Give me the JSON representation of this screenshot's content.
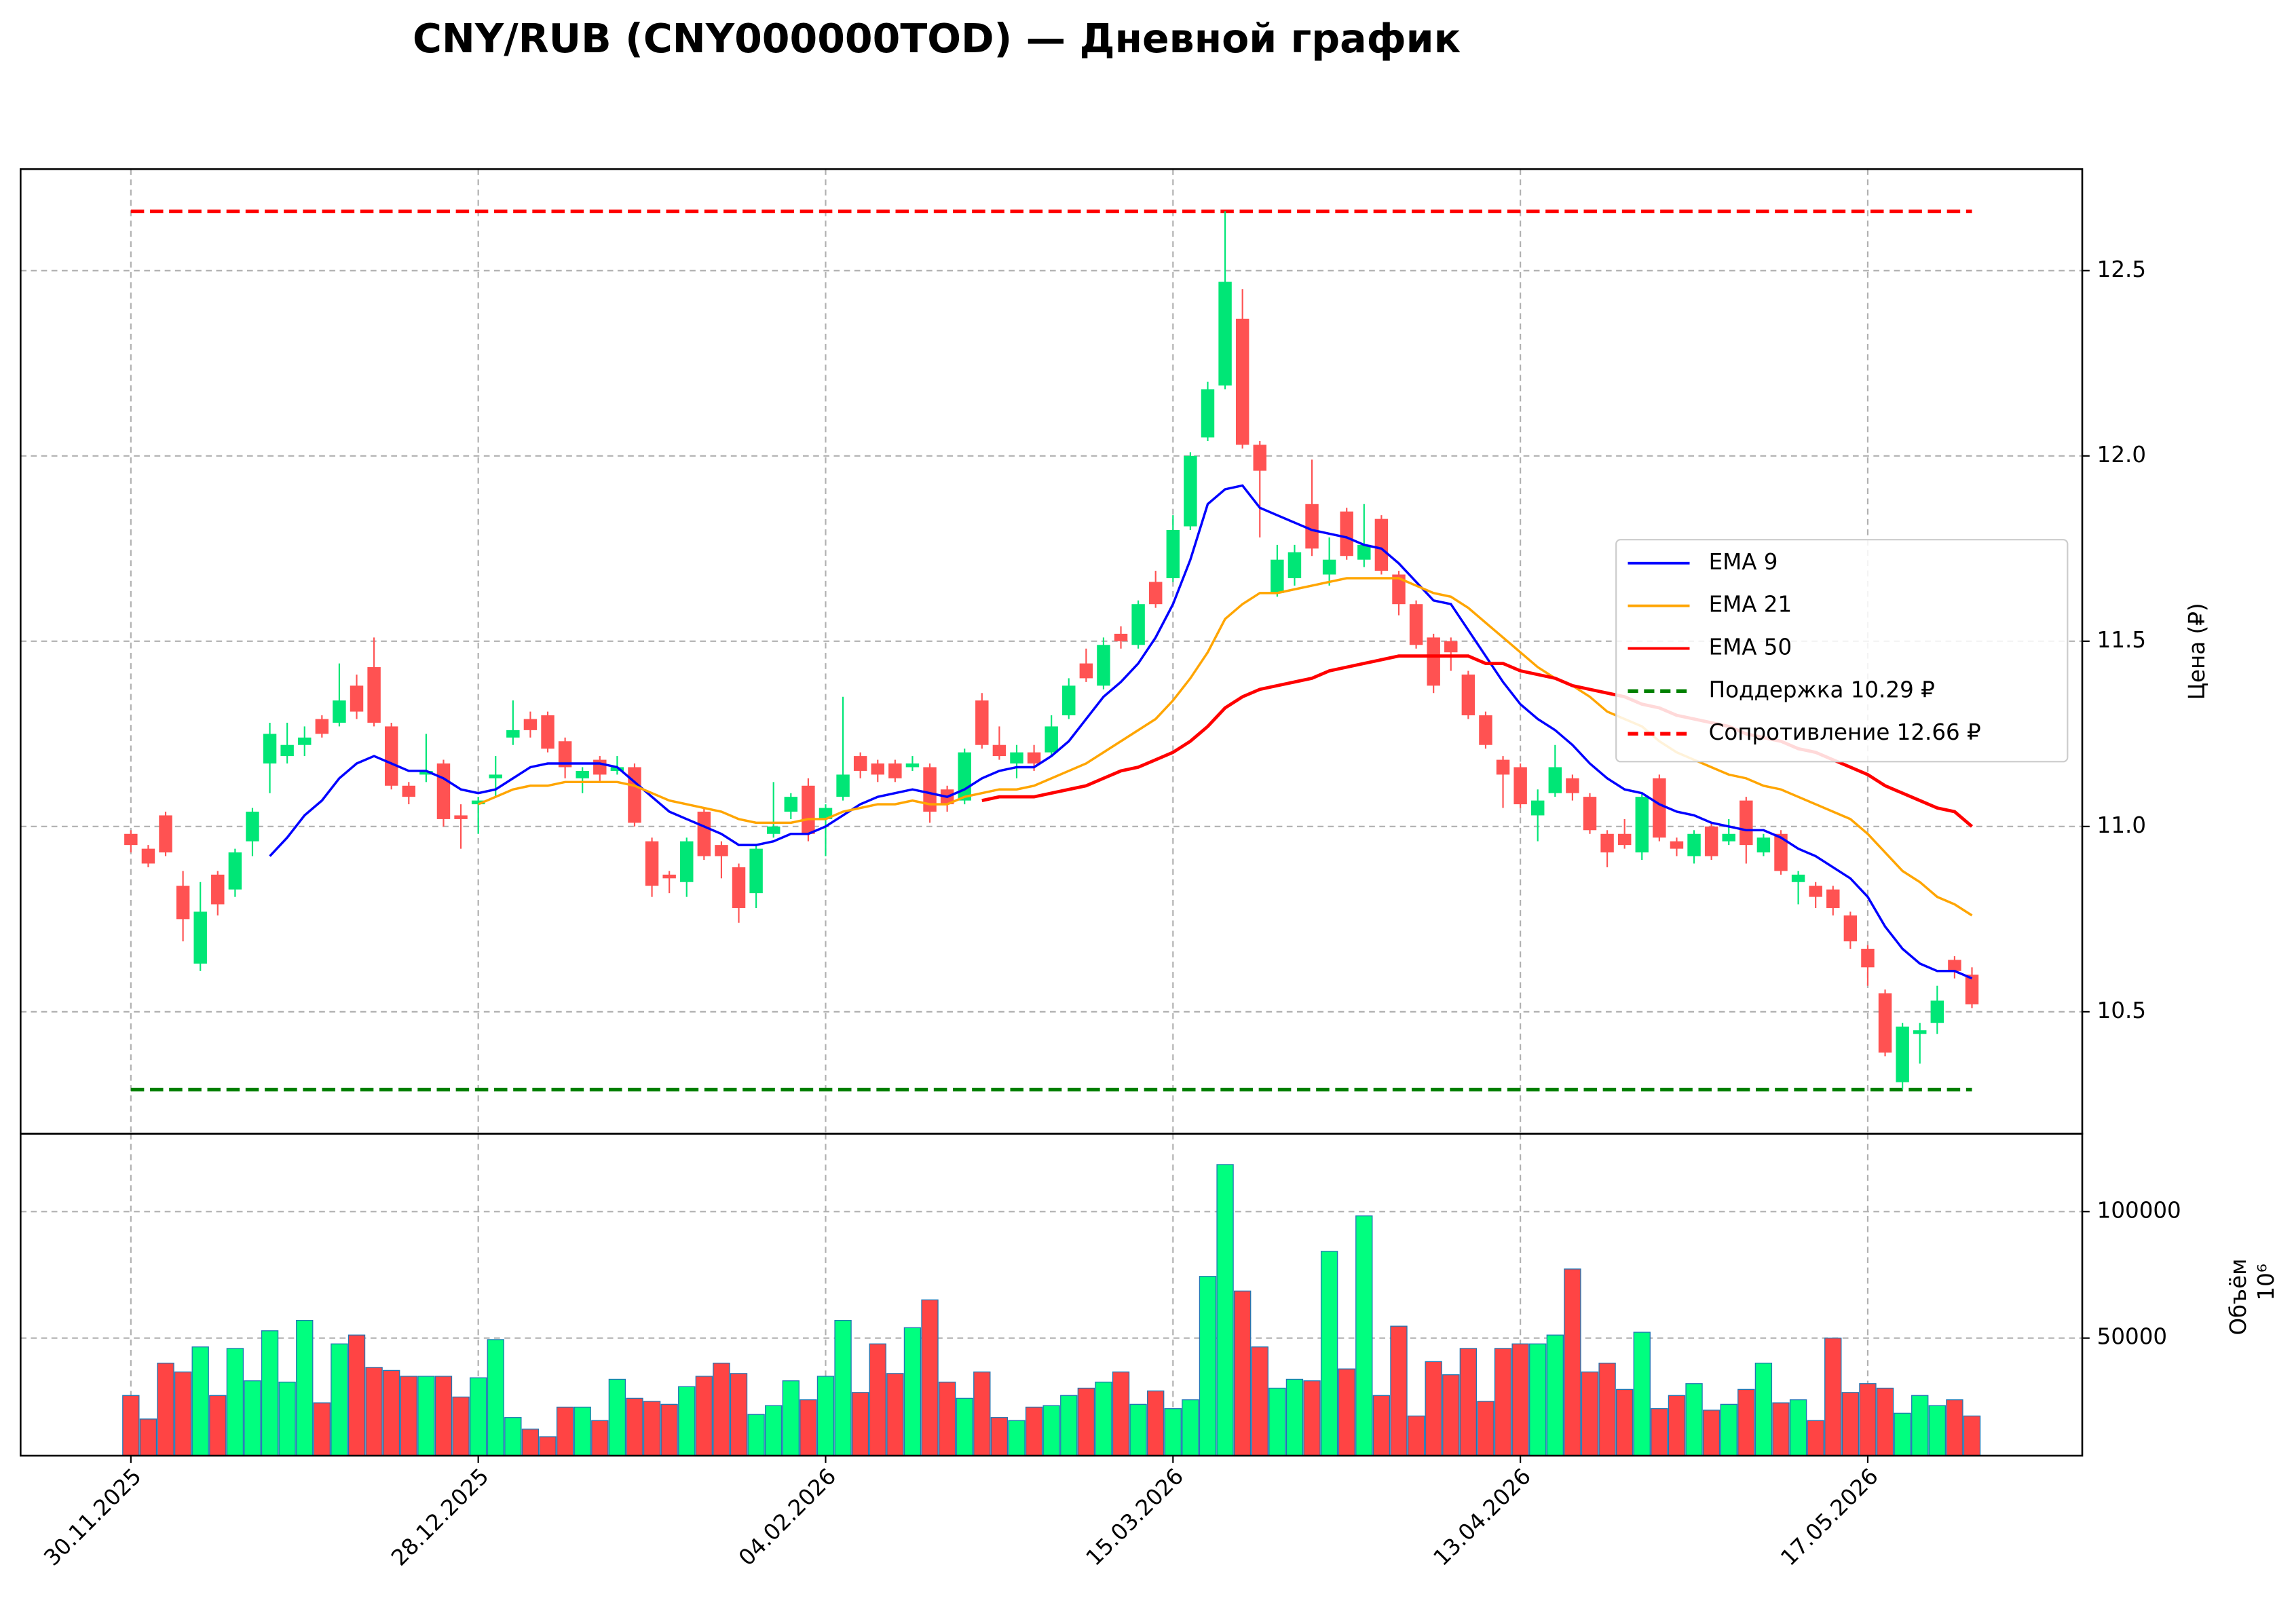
{
  "chart_data": [
    {
      "type": "candlestick",
      "title": "CNY/RUB (CNY000000TOD) — Дневной график",
      "ylabel": "Цена (₽)",
      "open": [
        10.98,
        10.94,
        11.03,
        10.84,
        10.63,
        10.87,
        10.83,
        10.96,
        11.17,
        11.19,
        11.22,
        11.29,
        11.28,
        11.38,
        11.43,
        11.27,
        11.11,
        11.14,
        11.17,
        11.03,
        11.06,
        11.13,
        11.24,
        11.29,
        11.3,
        11.23,
        11.13,
        11.18,
        11.15,
        11.16,
        10.96,
        10.87,
        10.85,
        11.04,
        10.95,
        10.89,
        10.82,
        10.98,
        11.04,
        11.11,
        11.02,
        11.08,
        11.19,
        11.17,
        11.17,
        11.16,
        11.16,
        11.1,
        11.07,
        11.34,
        11.22,
        11.17,
        11.2,
        11.2,
        11.3,
        11.44,
        11.38,
        11.52,
        11.49,
        11.66,
        11.67,
        11.81,
        12.05,
        12.19,
        12.37,
        12.03,
        11.63,
        11.67,
        11.87,
        11.68,
        11.85,
        11.72,
        11.83,
        11.68,
        11.6,
        11.51,
        11.5,
        11.41,
        11.3,
        11.18,
        11.16,
        11.03,
        11.09,
        11.13,
        11.08,
        10.98,
        10.98,
        10.93,
        11.13,
        10.96,
        10.92,
        11.0,
        10.96,
        11.07,
        10.93,
        10.98,
        10.85,
        10.84,
        10.83,
        10.76,
        10.67,
        10.55,
        10.31,
        10.44,
        10.47,
        10.64,
        10.6
      ],
      "high": [
        10.99,
        10.95,
        11.04,
        10.88,
        10.85,
        10.88,
        10.94,
        11.05,
        11.28,
        11.28,
        11.27,
        11.3,
        11.44,
        11.41,
        11.51,
        11.28,
        11.12,
        11.25,
        11.18,
        11.06,
        11.08,
        11.19,
        11.34,
        11.31,
        11.31,
        11.24,
        11.16,
        11.19,
        11.19,
        11.17,
        10.97,
        10.88,
        10.97,
        11.05,
        10.96,
        10.9,
        10.95,
        11.12,
        11.09,
        11.13,
        11.06,
        11.35,
        11.2,
        11.18,
        11.18,
        11.19,
        11.17,
        11.11,
        11.21,
        11.36,
        11.27,
        11.22,
        11.22,
        11.3,
        11.4,
        11.48,
        11.51,
        11.54,
        11.61,
        11.69,
        11.84,
        12.01,
        12.2,
        12.66,
        12.45,
        12.04,
        11.76,
        11.76,
        11.99,
        11.78,
        11.86,
        11.87,
        11.84,
        11.69,
        11.61,
        11.52,
        11.51,
        11.42,
        11.31,
        11.19,
        11.17,
        11.1,
        11.22,
        11.14,
        11.09,
        10.99,
        11.02,
        11.09,
        11.14,
        10.97,
        10.99,
        11.01,
        11.02,
        11.08,
        10.98,
        10.99,
        10.88,
        10.85,
        10.84,
        10.77,
        10.68,
        10.56,
        10.47,
        10.47,
        10.57,
        10.65,
        10.62
      ],
      "low": [
        10.93,
        10.89,
        10.92,
        10.69,
        10.61,
        10.76,
        10.81,
        10.92,
        11.09,
        11.17,
        11.19,
        11.24,
        11.27,
        11.29,
        11.27,
        11.1,
        11.06,
        11.12,
        11.0,
        10.94,
        10.98,
        11.08,
        11.22,
        11.24,
        11.2,
        11.13,
        11.09,
        11.12,
        11.14,
        11.0,
        10.81,
        10.82,
        10.81,
        10.91,
        10.86,
        10.74,
        10.78,
        10.97,
        11.02,
        10.96,
        10.92,
        11.07,
        11.13,
        11.12,
        11.12,
        11.15,
        11.01,
        11.04,
        11.06,
        11.21,
        11.18,
        11.13,
        11.15,
        11.19,
        11.29,
        11.39,
        11.37,
        11.48,
        11.48,
        11.59,
        11.66,
        11.8,
        12.04,
        12.18,
        12.02,
        11.78,
        11.62,
        11.65,
        11.73,
        11.65,
        11.72,
        11.7,
        11.68,
        11.57,
        11.48,
        11.36,
        11.42,
        11.29,
        11.21,
        11.05,
        11.05,
        10.96,
        11.08,
        11.07,
        10.98,
        10.89,
        10.94,
        10.91,
        10.96,
        10.92,
        10.9,
        10.91,
        10.95,
        10.9,
        10.92,
        10.87,
        10.79,
        10.78,
        10.76,
        10.67,
        10.57,
        10.38,
        10.29,
        10.36,
        10.44,
        10.59,
        10.51
      ],
      "close": [
        10.95,
        10.9,
        10.93,
        10.75,
        10.77,
        10.79,
        10.93,
        11.04,
        11.25,
        11.22,
        11.24,
        11.25,
        11.34,
        11.31,
        11.28,
        11.11,
        11.08,
        11.15,
        11.02,
        11.02,
        11.07,
        11.14,
        11.26,
        11.26,
        11.21,
        11.16,
        11.15,
        11.14,
        11.16,
        11.01,
        10.84,
        10.86,
        10.96,
        10.92,
        10.92,
        10.78,
        10.94,
        11.0,
        11.08,
        10.98,
        11.05,
        11.14,
        11.15,
        11.14,
        11.13,
        11.17,
        11.04,
        11.06,
        11.2,
        11.22,
        11.19,
        11.2,
        11.17,
        11.27,
        11.38,
        11.4,
        11.49,
        11.5,
        11.6,
        11.6,
        11.8,
        12.0,
        12.18,
        12.47,
        12.03,
        11.96,
        11.72,
        11.74,
        11.75,
        11.72,
        11.73,
        11.76,
        11.69,
        11.6,
        11.49,
        11.38,
        11.47,
        11.3,
        11.22,
        11.14,
        11.06,
        11.07,
        11.16,
        11.09,
        10.99,
        10.93,
        10.95,
        11.08,
        10.97,
        10.94,
        10.98,
        10.92,
        10.98,
        10.95,
        10.97,
        10.88,
        10.87,
        10.81,
        10.78,
        10.69,
        10.62,
        10.39,
        10.46,
        10.45,
        10.53,
        10.61,
        10.52
      ],
      "up_color": "#00e676",
      "down_color": "#ff5252",
      "ylim": [
        10.171,
        12.774
      ],
      "yticks": [
        10.5,
        {
          "value": 11,
          "label": "11.0"
        },
        11.5,
        {
          "value": 12,
          "label": "12.0"
        },
        12.5
      ],
      "grid": true,
      "lines": [
        {
          "name": "EMA 9",
          "color": "#0000ff",
          "values": [
            null,
            null,
            null,
            null,
            null,
            null,
            null,
            null,
            10.92,
            10.97,
            11.03,
            11.07,
            11.13,
            11.17,
            11.19,
            11.17,
            11.15,
            11.15,
            11.13,
            11.1,
            11.09,
            11.1,
            11.13,
            11.16,
            11.17,
            11.17,
            11.17,
            11.17,
            11.16,
            11.12,
            11.08,
            11.04,
            11.02,
            11.0,
            10.98,
            10.95,
            10.95,
            10.96,
            10.98,
            10.98,
            11.0,
            11.03,
            11.06,
            11.08,
            11.09,
            11.1,
            11.09,
            11.08,
            11.1,
            11.13,
            11.15,
            11.16,
            11.16,
            11.19,
            11.23,
            11.29,
            11.35,
            11.39,
            11.44,
            11.51,
            11.6,
            11.72,
            11.87,
            11.91,
            11.92,
            11.86,
            11.84,
            11.82,
            11.8,
            11.79,
            11.78,
            11.76,
            11.75,
            11.71,
            11.66,
            11.61,
            11.6,
            11.53,
            11.46,
            11.39,
            11.33,
            11.29,
            11.26,
            11.22,
            11.17,
            11.13,
            11.1,
            11.09,
            11.06,
            11.04,
            11.03,
            11.01,
            11.0,
            10.99,
            10.99,
            10.97,
            10.94,
            10.92,
            10.89,
            10.86,
            10.81,
            10.73,
            10.67,
            10.63,
            10.61,
            10.61,
            10.59
          ]
        },
        {
          "name": "EMA 21",
          "color": "#ffa500",
          "values": [
            null,
            null,
            null,
            null,
            null,
            null,
            null,
            null,
            null,
            null,
            null,
            null,
            null,
            null,
            null,
            null,
            null,
            null,
            null,
            null,
            11.06,
            11.08,
            11.1,
            11.11,
            11.11,
            11.12,
            11.12,
            11.12,
            11.12,
            11.11,
            11.09,
            11.07,
            11.06,
            11.05,
            11.04,
            11.02,
            11.01,
            11.01,
            11.01,
            11.02,
            11.02,
            11.04,
            11.05,
            11.06,
            11.06,
            11.07,
            11.06,
            11.06,
            11.08,
            11.09,
            11.1,
            11.1,
            11.11,
            11.13,
            11.15,
            11.17,
            11.2,
            11.23,
            11.26,
            11.29,
            11.34,
            11.4,
            11.47,
            11.56,
            11.6,
            11.63,
            11.63,
            11.64,
            11.65,
            11.66,
            11.67,
            11.67,
            11.67,
            11.67,
            11.65,
            11.63,
            11.62,
            11.59,
            11.55,
            11.51,
            11.47,
            11.43,
            11.4,
            11.38,
            11.35,
            11.31,
            11.29,
            11.27,
            11.23,
            11.2,
            11.18,
            11.16,
            11.14,
            11.13,
            11.11,
            11.1,
            11.08,
            11.06,
            11.04,
            11.02,
            10.98,
            10.93,
            10.88,
            10.85,
            10.81,
            10.79,
            10.76
          ]
        },
        {
          "name": "EMA 50",
          "color": "#ff0000",
          "values": [
            null,
            null,
            null,
            null,
            null,
            null,
            null,
            null,
            null,
            null,
            null,
            null,
            null,
            null,
            null,
            null,
            null,
            null,
            null,
            null,
            null,
            null,
            null,
            null,
            null,
            null,
            null,
            null,
            null,
            null,
            null,
            null,
            null,
            null,
            null,
            null,
            null,
            null,
            null,
            null,
            null,
            null,
            null,
            null,
            null,
            null,
            null,
            null,
            null,
            11.07,
            11.08,
            11.08,
            11.08,
            11.09,
            11.1,
            11.11,
            11.13,
            11.15,
            11.16,
            11.18,
            11.2,
            11.23,
            11.27,
            11.32,
            11.35,
            11.37,
            11.38,
            11.39,
            11.4,
            11.42,
            11.43,
            11.44,
            11.45,
            11.46,
            11.46,
            11.46,
            11.46,
            11.46,
            11.44,
            11.44,
            11.42,
            11.41,
            11.4,
            11.38,
            11.37,
            11.36,
            11.35,
            11.33,
            11.32,
            11.3,
            11.29,
            11.28,
            11.27,
            11.25,
            11.24,
            11.23,
            11.21,
            11.2,
            11.18,
            11.16,
            11.14,
            11.11,
            11.09,
            11.07,
            11.05,
            11.04,
            11.0
          ]
        }
      ],
      "hlines": [
        {
          "name": "Поддержка 10.29 ₽",
          "color": "#008000",
          "value": 10.29
        },
        {
          "name": "Сопротивление 12.66 ₽",
          "color": "#ff0000",
          "value": 12.66
        }
      ],
      "legend": "center right"
    },
    {
      "type": "bar",
      "ylabel": "Объём",
      "yoffset_label": "10⁶",
      "categories": [
        "30.11.2025",
        null,
        null,
        null,
        null,
        null,
        null,
        null,
        null,
        null,
        null,
        null,
        null,
        null,
        null,
        null,
        null,
        null,
        null,
        null,
        "28.12.2025",
        null,
        null,
        null,
        null,
        null,
        null,
        null,
        null,
        null,
        null,
        null,
        null,
        null,
        null,
        null,
        null,
        null,
        null,
        null,
        "04.02.2026",
        null,
        null,
        null,
        null,
        null,
        null,
        null,
        null,
        null,
        null,
        null,
        null,
        null,
        null,
        null,
        null,
        null,
        null,
        null,
        "15.03.2026",
        null,
        null,
        null,
        null,
        null,
        null,
        null,
        null,
        null,
        null,
        null,
        null,
        null,
        null,
        null,
        null,
        null,
        null,
        null,
        "13.04.2026",
        null,
        null,
        null,
        null,
        null,
        null,
        null,
        null,
        null,
        null,
        null,
        null,
        null,
        null,
        null,
        null,
        null,
        null,
        null,
        "17.05.2026",
        null,
        null,
        null,
        null,
        null,
        null
      ],
      "values": [
        27300,
        18000,
        40100,
        36600,
        46500,
        27300,
        45900,
        33100,
        52900,
        32600,
        57000,
        24400,
        47700,
        51200,
        38400,
        37200,
        34900,
        34900,
        34900,
        26700,
        34300,
        49400,
        18600,
        14000,
        11000,
        22700,
        22700,
        17400,
        33700,
        26200,
        25000,
        23800,
        30800,
        34900,
        40100,
        36000,
        19800,
        23300,
        33100,
        25600,
        34900,
        57000,
        28500,
        47700,
        36000,
        54100,
        65100,
        32600,
        26200,
        36600,
        18600,
        17400,
        22700,
        23300,
        27300,
        30200,
        32600,
        36600,
        23800,
        29100,
        22100,
        25600,
        74400,
        118600,
        68600,
        46500,
        30200,
        33700,
        33100,
        84300,
        37800,
        98300,
        27300,
        54700,
        19200,
        40700,
        35500,
        45900,
        25000,
        45900,
        47700,
        47700,
        51200,
        77300,
        36600,
        40100,
        29700,
        52300,
        22100,
        27300,
        32000,
        21500,
        23800,
        29700,
        40100,
        24400,
        25600,
        17400,
        50000,
        28500,
        32000,
        30200,
        20300,
        27300,
        23300,
        25600,
        19200
      ],
      "up_color": "#00ff7f",
      "down_color": "#ff4444",
      "edge_color": "#1f77b4",
      "ylim": [
        3500,
        130800
      ],
      "yticks": [
        50000,
        100000
      ],
      "grid": true
    }
  ]
}
